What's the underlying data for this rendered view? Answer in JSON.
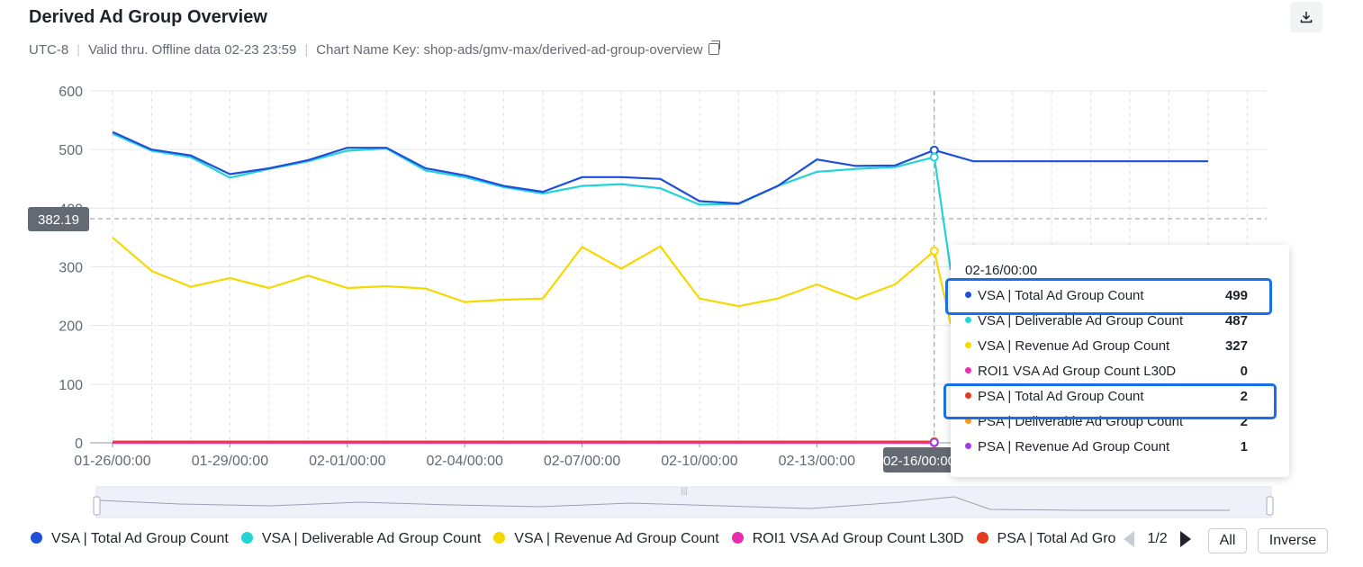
{
  "header": {
    "title": "Derived Ad Group Overview",
    "timezone": "UTC-8",
    "valid_thru": "Valid thru. Offline data 02-23 23:59",
    "chart_name_key": "Chart Name Key: shop-ads/gmv-max/derived-ad-group-overview",
    "download_icon": "download-icon",
    "copy_icon": "copy-icon"
  },
  "crosshair": {
    "y_value": "382.19",
    "x_label": "02-16/00:00"
  },
  "tooltip": {
    "title": "02-16/00:00",
    "rows": [
      {
        "label": "VSA | Total Ad Group Count",
        "value": "499",
        "color": "#1e4fd8"
      },
      {
        "label": "VSA | Deliverable Ad Group Count",
        "value": "487",
        "color": "#24d3d8"
      },
      {
        "label": "VSA | Revenue Ad Group Count",
        "value": "327",
        "color": "#f5d800"
      },
      {
        "label": "ROI1 VSA Ad Group Count L30D",
        "value": "0",
        "color": "#e52fb0"
      },
      {
        "label": "PSA | Total Ad Group Count",
        "value": "2",
        "color": "#e23b1f"
      },
      {
        "label": "PSA | Deliverable Ad Group Count",
        "value": "2",
        "color": "#f59a1b"
      },
      {
        "label": "PSA | Revenue Ad Group Count",
        "value": "1",
        "color": "#9b3ee5"
      }
    ]
  },
  "legend": {
    "items": [
      {
        "label": "VSA | Total Ad Group Count",
        "color": "#1e4fd8"
      },
      {
        "label": "VSA | Deliverable Ad Group Count",
        "color": "#24d3d8"
      },
      {
        "label": "VSA | Revenue Ad Group Count",
        "color": "#f5d800"
      },
      {
        "label": "ROI1 VSA Ad Group Count L30D",
        "color": "#e52fb0"
      },
      {
        "label": "PSA  | Total Ad Group Count",
        "color": "#e23b1f"
      }
    ],
    "page": "1/2",
    "all_label": "All",
    "inverse_label": "Inverse"
  },
  "chart_data": {
    "type": "line",
    "title": "Derived Ad Group Overview",
    "xlabel": "",
    "ylabel": "",
    "ylim": [
      0,
      600
    ],
    "yticks": [
      "0",
      "100",
      "200",
      "300",
      "400",
      "500",
      "600"
    ],
    "xticks": [
      "01-26/00:00",
      "01-29/00:00",
      "02-01/00:00",
      "02-04/00:00",
      "02-07/00:00",
      "02-10/00:00",
      "02-13/00:00",
      "02-16/00:00"
    ],
    "x": [
      "01-26",
      "01-27",
      "01-28",
      "01-29",
      "01-30",
      "01-31",
      "02-01",
      "02-02",
      "02-03",
      "02-04",
      "02-05",
      "02-06",
      "02-07",
      "02-08",
      "02-09",
      "02-10",
      "02-11",
      "02-12",
      "02-13",
      "02-14",
      "02-15",
      "02-16",
      "02-17",
      "02-18",
      "02-19",
      "02-20",
      "02-21",
      "02-22",
      "02-23"
    ],
    "series": [
      {
        "name": "VSA | Total Ad Group Count",
        "color": "#1e4fd8",
        "values": [
          530,
          500,
          490,
          458,
          468,
          482,
          503,
          503,
          468,
          456,
          438,
          428,
          453,
          453,
          450,
          412,
          408,
          438,
          483,
          472,
          473,
          499,
          480,
          480,
          480,
          480,
          480,
          480,
          480
        ]
      },
      {
        "name": "VSA | Deliverable Ad Group Count",
        "color": "#24d3d8",
        "values": [
          527,
          498,
          487,
          452,
          467,
          480,
          498,
          502,
          464,
          453,
          436,
          425,
          438,
          441,
          434,
          406,
          407,
          438,
          462,
          467,
          470,
          487,
          null,
          null,
          null,
          null,
          null,
          null,
          null
        ]
      },
      {
        "name": "VSA | Revenue Ad Group Count",
        "color": "#f5d800",
        "values": [
          350,
          293,
          266,
          281,
          264,
          285,
          264,
          267,
          263,
          240,
          244,
          246,
          334,
          297,
          335,
          246,
          233,
          246,
          270,
          245,
          270,
          327,
          null,
          null,
          null,
          null,
          null,
          null,
          null
        ]
      },
      {
        "name": "ROI1 VSA Ad Group Count L30D",
        "color": "#e52fb0",
        "values": [
          0,
          0,
          0,
          0,
          0,
          0,
          0,
          0,
          0,
          0,
          0,
          0,
          0,
          0,
          0,
          0,
          0,
          0,
          0,
          0,
          0,
          0,
          null,
          null,
          null,
          null,
          null,
          null,
          null
        ]
      },
      {
        "name": "PSA | Total Ad Group Count",
        "color": "#e23b1f",
        "values": [
          2,
          2,
          2,
          2,
          2,
          2,
          2,
          2,
          2,
          2,
          2,
          2,
          2,
          2,
          2,
          2,
          2,
          2,
          2,
          2,
          2,
          2,
          null,
          null,
          null,
          null,
          null,
          null,
          null
        ]
      },
      {
        "name": "PSA | Deliverable Ad Group Count",
        "color": "#f59a1b",
        "values": [
          2,
          2,
          2,
          2,
          2,
          2,
          2,
          2,
          2,
          2,
          2,
          2,
          2,
          2,
          2,
          2,
          2,
          2,
          2,
          2,
          2,
          2,
          null,
          null,
          null,
          null,
          null,
          null,
          null
        ]
      },
      {
        "name": "PSA | Revenue Ad Group Count",
        "color": "#9b3ee5",
        "values": [
          1,
          1,
          1,
          1,
          1,
          1,
          1,
          1,
          1,
          1,
          1,
          1,
          1,
          1,
          1,
          1,
          1,
          1,
          1,
          1,
          1,
          1,
          null,
          null,
          null,
          null,
          null,
          null,
          null
        ]
      }
    ]
  }
}
